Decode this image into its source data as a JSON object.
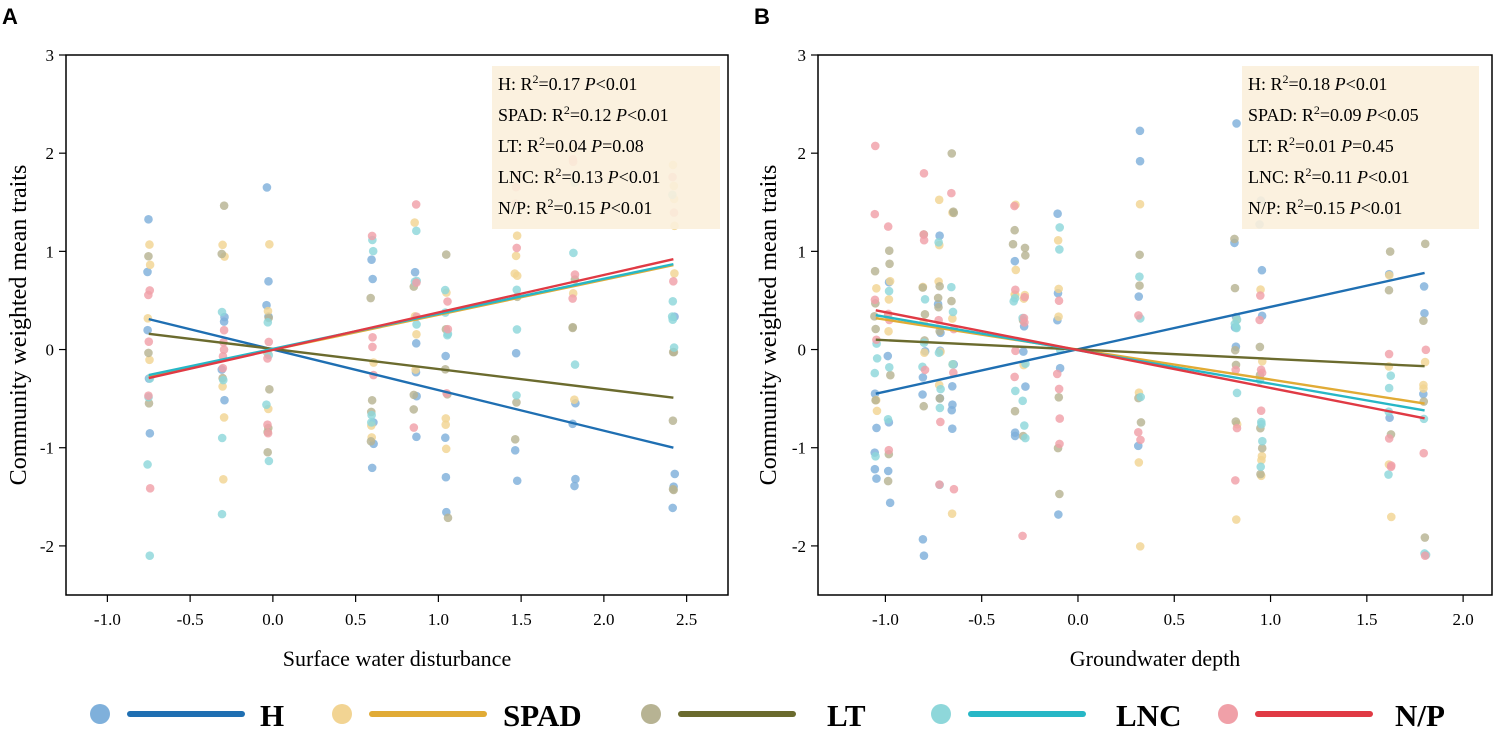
{
  "colors": {
    "H": "#1f6fb2",
    "SPAD": "#e1ab35",
    "LT": "#6b6b2e",
    "LNC": "#27b7c6",
    "N/P": "#e03a44",
    "H_point": "#7fb0db",
    "SPAD_point": "#f2d493",
    "LT_point": "#b7b393",
    "LNC_point": "#8ed7da",
    "N/P_point": "#f0a0a8",
    "stats_box": "#fbf0dc"
  },
  "legend": {
    "items": [
      {
        "key": "H",
        "label": "H"
      },
      {
        "key": "SPAD",
        "label": "SPAD"
      },
      {
        "key": "LT",
        "label": "LT"
      },
      {
        "key": "LNC",
        "label": "LNC"
      },
      {
        "key": "N/P",
        "label": "N/P"
      }
    ]
  },
  "chart_data": [
    {
      "panel": "A",
      "type": "scatter",
      "xlabel": "Surface water disturbance",
      "ylabel": "Community weighted mean traits",
      "xlim": [
        -1.25,
        2.75
      ],
      "ylim": [
        -2.5,
        3
      ],
      "xticks": [
        -1.0,
        -0.5,
        0.0,
        0.5,
        1.0,
        1.5,
        2.0,
        2.5
      ],
      "xtick_labels": [
        "-1.0",
        "-0.5",
        "0.0",
        "0.5",
        "1.0",
        "1.5",
        "2.0",
        "2.5"
      ],
      "yticks": [
        -2,
        -1,
        0,
        1,
        2,
        3
      ],
      "ytick_labels": [
        "-2",
        "-1",
        "0",
        "1",
        "2",
        "3"
      ],
      "x_groups": [
        -0.75,
        -0.3,
        -0.03,
        0.6,
        0.86,
        1.05,
        1.47,
        1.82,
        2.42
      ],
      "stats": [
        {
          "trait": "H",
          "r2": "0.17",
          "p": "<0.01"
        },
        {
          "trait": "SPAD",
          "r2": "0.12",
          "p": "<0.01"
        },
        {
          "trait": "LT",
          "r2": "0.04",
          "p": "=0.08"
        },
        {
          "trait": "LNC",
          "r2": "0.13",
          "p": "<0.01"
        },
        {
          "trait": "N/P",
          "r2": "0.15",
          "p": "<0.01"
        }
      ],
      "fits": [
        {
          "trait": "H",
          "x": [
            -0.75,
            2.42
          ],
          "y": [
            0.31,
            -1.0
          ]
        },
        {
          "trait": "SPAD",
          "x": [
            -0.75,
            2.42
          ],
          "y": [
            -0.27,
            0.86
          ]
        },
        {
          "trait": "LT",
          "x": [
            -0.75,
            2.42
          ],
          "y": [
            0.16,
            -0.49
          ]
        },
        {
          "trait": "LNC",
          "x": [
            -0.75,
            2.42
          ],
          "y": [
            -0.26,
            0.87
          ]
        },
        {
          "trait": "N/P",
          "x": [
            -0.75,
            2.42
          ],
          "y": [
            -0.29,
            0.92
          ]
        }
      ]
    },
    {
      "panel": "B",
      "type": "scatter",
      "xlabel": "Groundwater depth",
      "ylabel": "Community weighted mean traits",
      "xlim": [
        -1.35,
        2.15
      ],
      "ylim": [
        -2.5,
        3
      ],
      "xticks": [
        -1.0,
        -0.5,
        0.0,
        0.5,
        1.0,
        1.5,
        2.0
      ],
      "xtick_labels": [
        "-1.0",
        "-0.5",
        "0.0",
        "0.5",
        "1.0",
        "1.5",
        "2.0"
      ],
      "yticks": [
        -2,
        -1,
        0,
        1,
        2,
        3
      ],
      "ytick_labels": [
        "-2",
        "-1",
        "0",
        "1",
        "2",
        "3"
      ],
      "x_groups": [
        -1.05,
        -0.98,
        -0.8,
        -0.72,
        -0.65,
        -0.33,
        -0.28,
        -0.1,
        0.32,
        0.82,
        0.95,
        1.62,
        1.8
      ],
      "stats": [
        {
          "trait": "H",
          "r2": "0.18",
          "p": "<0.01"
        },
        {
          "trait": "SPAD",
          "r2": "0.09",
          "p": "<0.05"
        },
        {
          "trait": "LT",
          "r2": "0.01",
          "p": "=0.45"
        },
        {
          "trait": "LNC",
          "r2": "0.11",
          "p": "<0.01"
        },
        {
          "trait": "N/P",
          "r2": "0.15",
          "p": "<0.01"
        }
      ],
      "fits": [
        {
          "trait": "H",
          "x": [
            -1.05,
            1.8
          ],
          "y": [
            -0.45,
            0.78
          ]
        },
        {
          "trait": "SPAD",
          "x": [
            -1.05,
            1.8
          ],
          "y": [
            0.32,
            -0.55
          ]
        },
        {
          "trait": "LT",
          "x": [
            -1.05,
            1.8
          ],
          "y": [
            0.1,
            -0.17
          ]
        },
        {
          "trait": "LNC",
          "x": [
            -1.05,
            1.8
          ],
          "y": [
            0.35,
            -0.62
          ]
        },
        {
          "trait": "N/P",
          "x": [
            -1.05,
            1.8
          ],
          "y": [
            0.4,
            -0.7
          ]
        }
      ]
    }
  ]
}
